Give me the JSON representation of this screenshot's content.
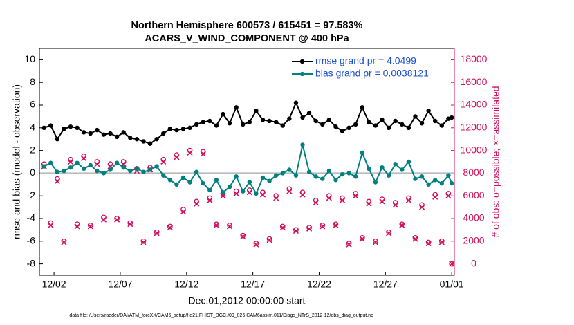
{
  "chart_data": {
    "type": "line",
    "title": "Northern Hemisphere 600573 / 615451 = 97.583%",
    "subtitle": "ACARS_V_WIND_COMPONENT @ 400 hPa",
    "x_label": "Dec.01,2012 00:00:00 start",
    "y_label": "rmse and bias (model - observation)",
    "y2_label": "# of obs: o=possible; ×=assimilated",
    "footnote": "data file: /Users/raeder/DAI/ATM_forcXX/CAM6_setup/f.e21.FHIST_BGC.f09_025.CAM6assim.011/Diags_NTrS_2012-12/obs_diag_output.nc",
    "xlim": [
      -0.1,
      31.2
    ],
    "xticks": [
      {
        "value": 1,
        "label": "12/02"
      },
      {
        "value": 6,
        "label": "12/07"
      },
      {
        "value": 11,
        "label": "12/12"
      },
      {
        "value": 16,
        "label": "12/17"
      },
      {
        "value": 21,
        "label": "12/22"
      },
      {
        "value": 26,
        "label": "12/27"
      },
      {
        "value": 31,
        "label": "01/01"
      }
    ],
    "ylim": [
      -9,
      11
    ],
    "yticks": [
      -8,
      -6,
      -4,
      -2,
      0,
      2,
      4,
      6,
      8,
      10
    ],
    "y2lim": [
      -1000,
      19000
    ],
    "y2ticks": [
      0,
      2000,
      4000,
      6000,
      8000,
      10000,
      12000,
      14000,
      16000,
      18000
    ],
    "legend": "upper right",
    "x": [
      0.25,
      0.75,
      1.25,
      1.75,
      2.25,
      2.75,
      3.25,
      3.75,
      4.25,
      4.75,
      5.25,
      5.75,
      6.25,
      6.75,
      7.25,
      7.75,
      8.25,
      8.75,
      9.25,
      9.75,
      10.25,
      10.75,
      11.25,
      11.75,
      12.25,
      12.75,
      13.25,
      13.75,
      14.25,
      14.75,
      15.25,
      15.75,
      16.25,
      16.75,
      17.25,
      17.75,
      18.25,
      18.75,
      19.25,
      19.75,
      20.25,
      20.75,
      21.25,
      21.75,
      22.25,
      22.75,
      23.25,
      23.75,
      24.25,
      24.75,
      25.25,
      25.75,
      26.25,
      26.75,
      27.25,
      27.75,
      28.25,
      28.75,
      29.25,
      29.75,
      30.25,
      30.75,
      31
    ],
    "series": [
      {
        "name": "rmse grand pr = 4.0499",
        "color": "#000000",
        "values": [
          4.0,
          4.2,
          3.0,
          3.9,
          4.1,
          4.0,
          3.6,
          3.5,
          3.8,
          3.4,
          3.5,
          3.2,
          3.6,
          3.1,
          3.0,
          2.8,
          2.6,
          3.0,
          3.5,
          3.9,
          3.8,
          3.9,
          4.0,
          4.3,
          4.5,
          4.6,
          4.2,
          5.2,
          4.4,
          5.8,
          4.3,
          4.5,
          5.5,
          4.7,
          4.6,
          4.5,
          4.2,
          4.8,
          6.2,
          4.9,
          5.3,
          4.6,
          4.3,
          4.7,
          4.1,
          3.7,
          4.0,
          4.3,
          5.8,
          4.5,
          4.2,
          4.7,
          4.0,
          4.6,
          4.3,
          4.0,
          5.0,
          4.4,
          5.5,
          4.6,
          4.2,
          4.8,
          4.9
        ]
      },
      {
        "name": "bias grand pr = 0.0038121",
        "color": "#008080",
        "values": [
          0.6,
          0.9,
          0.1,
          0.2,
          0.5,
          0.9,
          0.4,
          0.7,
          0.2,
          0.0,
          0.3,
          0.9,
          0.5,
          0.2,
          0.4,
          0.1,
          0.3,
          0.6,
          -0.2,
          -0.6,
          -1.0,
          -0.4,
          -0.8,
          0.1,
          -0.9,
          -1.5,
          -0.6,
          -1.7,
          -1.2,
          -0.3,
          -1.6,
          -0.8,
          -1.8,
          -0.4,
          -0.7,
          -0.2,
          0.0,
          0.3,
          -0.2,
          2.5,
          0.1,
          -0.3,
          -0.5,
          0.2,
          -0.6,
          -0.1,
          0.0,
          -0.3,
          1.8,
          0.4,
          -0.8,
          0.5,
          -0.2,
          0.8,
          0.3,
          1.0,
          -0.5,
          -0.3,
          -1.0,
          -0.6,
          -0.9,
          -0.2,
          -0.9
        ]
      },
      {
        "color": "#d0105a",
        "axis": "y2",
        "marker": "o",
        "values": [
          8800,
          3600,
          7500,
          2000,
          9200,
          3500,
          9500,
          3400,
          9000,
          4100,
          8800,
          4000,
          9000,
          3600,
          8400,
          2000,
          8500,
          2800,
          9200,
          3300,
          9600,
          4800,
          10000,
          5500,
          9900,
          5800,
          3500,
          6200,
          3400,
          6400,
          2500,
          6500,
          1800,
          6300,
          2200,
          6000,
          3300,
          6600,
          3000,
          6300,
          3200,
          5600,
          3400,
          6000,
          3500,
          5800,
          1800,
          6200,
          2300,
          5500,
          2000,
          5700,
          2800,
          5400,
          3500,
          5800,
          2300,
          5200,
          1900,
          6100,
          2000,
          6200,
          0
        ]
      },
      {
        "color": "#d0105a",
        "axis": "y2",
        "marker": "x",
        "values": [
          8600,
          3400,
          7300,
          1900,
          9000,
          3300,
          9300,
          3300,
          8800,
          3900,
          8600,
          3900,
          8800,
          3500,
          8200,
          1900,
          8300,
          2700,
          9000,
          3200,
          9400,
          4600,
          9800,
          5300,
          9700,
          5600,
          3400,
          6000,
          3300,
          6200,
          2400,
          6300,
          1700,
          6100,
          2100,
          5800,
          3200,
          6400,
          2900,
          6100,
          3100,
          5400,
          3300,
          5800,
          3400,
          5600,
          1700,
          6000,
          2200,
          5300,
          1900,
          5500,
          2700,
          5200,
          3400,
          5600,
          2200,
          5000,
          1800,
          5900,
          1900,
          6000,
          0
        ]
      }
    ]
  }
}
